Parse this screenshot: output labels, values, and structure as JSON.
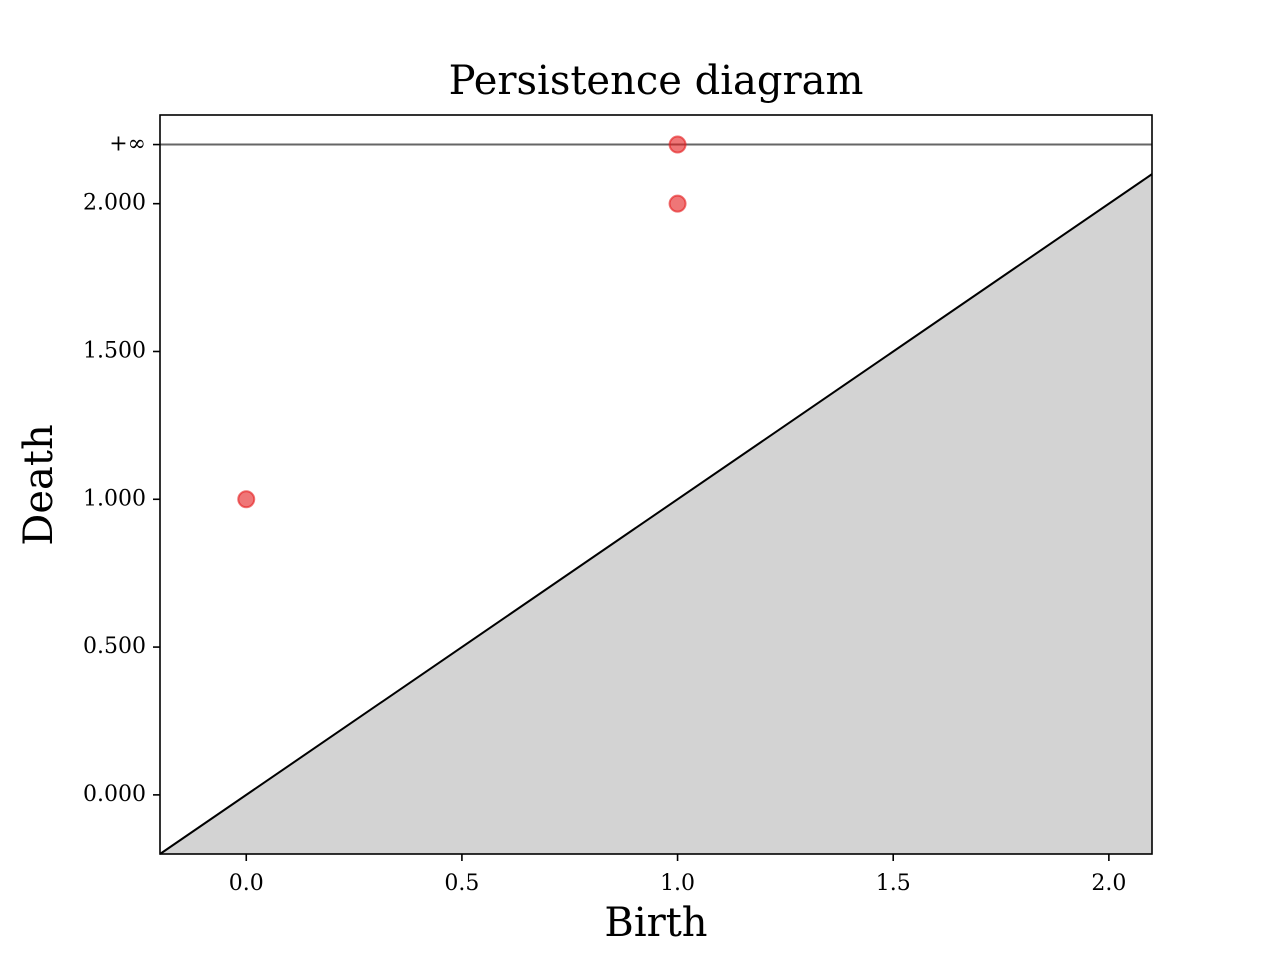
{
  "chart_data": {
    "type": "scatter",
    "title": "Persistence diagram",
    "xlabel": "Birth",
    "ylabel": "Death",
    "series": [
      {
        "color": "#e41a1c",
        "x": [
          0,
          1,
          1
        ],
        "values": [
          1,
          2,
          2.2
        ]
      }
    ],
    "xlim": [
      -0.2,
      2.1
    ],
    "ylim": [
      -0.2,
      2.3
    ],
    "xticks": [
      {
        "value": 0,
        "label": "0.0"
      },
      {
        "value": 0.5,
        "label": "0.5"
      },
      {
        "value": 1,
        "label": "1.0"
      },
      {
        "value": 1.5,
        "label": "1.5"
      },
      {
        "value": 2,
        "label": "2.0"
      }
    ],
    "yticks": [
      {
        "value": 0,
        "label": "0.000"
      },
      {
        "value": 0.5,
        "label": "0.500"
      },
      {
        "value": 1,
        "label": "1.000"
      },
      {
        "value": 1.5,
        "label": "1.500"
      },
      {
        "value": 2,
        "label": "2.000"
      },
      {
        "value": 2.2,
        "label": "+∞"
      }
    ],
    "diagonal_color": "#d3d3d3"
  }
}
